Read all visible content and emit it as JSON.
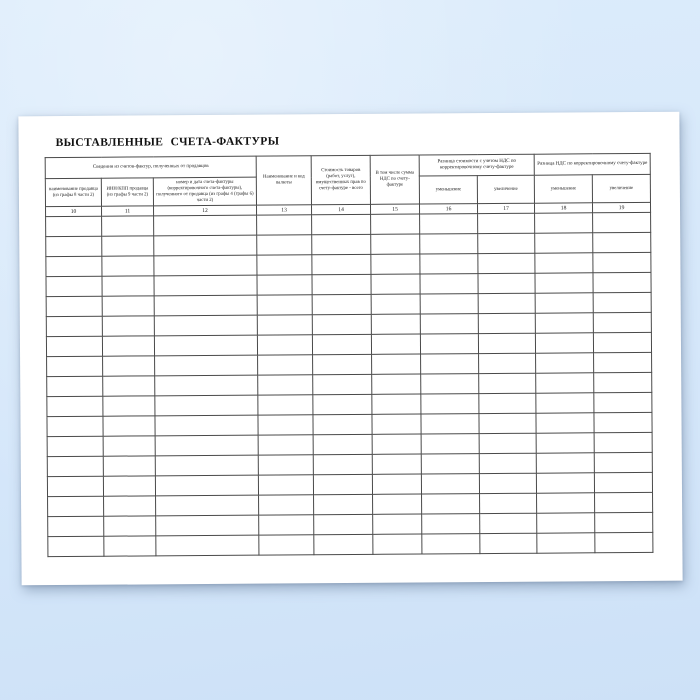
{
  "page": {
    "title": "ВЫСТАВЛЕННЫЕ СЧЕТА-ФАКТУРЫ"
  },
  "table": {
    "groups": {
      "seller_invoices": "Сведения из счетов-фактур, полученных от продавцов",
      "cost_difference": "Разница стоимости с учетом НДС по корректировочному счету-фактуре",
      "vat_difference": "Разница НДС по корректировочному счету-фактуре"
    },
    "columns": [
      {
        "num": "10",
        "label": "наименование продавца (из графы 8 части 2)"
      },
      {
        "num": "11",
        "label": "ИНН/КПП продавца (из графы 9 части 2)"
      },
      {
        "num": "12",
        "label": "номер и дата счета-фактуры (корректировочного счета-фактуры), полученного от продавца (из графы 4 (графы 6) части 2)"
      },
      {
        "num": "13",
        "label": "Наименование и код валюты"
      },
      {
        "num": "14",
        "label": "Стоимость товаров (работ, услуг), имущественных прав по счету-фактуре - всего"
      },
      {
        "num": "15",
        "label": "В том числе сумма НДС по счету-фактуре"
      },
      {
        "num": "16",
        "label": "уменьшение"
      },
      {
        "num": "17",
        "label": "увеличение"
      },
      {
        "num": "18",
        "label": "уменьшение"
      },
      {
        "num": "19",
        "label": "увеличение"
      }
    ],
    "empty_row_count": 17
  },
  "colors": {
    "bg_top": "#dcecfb",
    "bg_bottom": "#cde1f7",
    "page_white": "#ffffff",
    "table_border": "#4a4a4a",
    "ink": "#1b1b1b"
  }
}
